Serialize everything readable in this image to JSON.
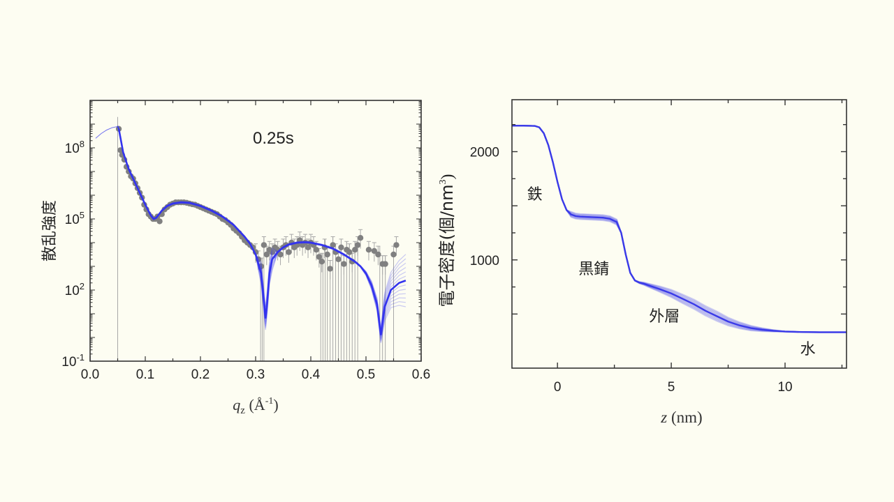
{
  "chart_data": [
    {
      "type": "scatter",
      "title": "",
      "annotation": "0.25s",
      "xlabel_main": "q",
      "xlabel_sub": "z",
      "xlabel_unit": " (Å",
      "xlabel_unit_sup": "-1",
      "xlabel_unit_close": ")",
      "ylabel": "散乱強度",
      "xlim": [
        0.0,
        0.6
      ],
      "ylim_log10": [
        -1,
        10
      ],
      "yscale": "log",
      "x_ticks": [
        "0.0",
        "0.1",
        "0.2",
        "0.3",
        "0.4",
        "0.5",
        "0.6"
      ],
      "x_tick_values": [
        0.0,
        0.1,
        0.2,
        0.3,
        0.4,
        0.5,
        0.6
      ],
      "y_ticks": [
        {
          "base": "10",
          "exp": "8",
          "log10": 8
        },
        {
          "base": "10",
          "exp": "5",
          "log10": 5
        },
        {
          "base": "10",
          "exp": "2",
          "log10": 2
        },
        {
          "base": "10",
          "exp": "-1",
          "log10": -1
        }
      ],
      "colors": {
        "data": "#808080",
        "fit": "#3333ee",
        "errorbar": "#a8a8a8"
      },
      "series": [
        {
          "name": "measured",
          "points_log10": [
            [
              0.052,
              8.8
            ],
            [
              0.055,
              7.9
            ],
            [
              0.058,
              7.7
            ],
            [
              0.062,
              7.5
            ],
            [
              0.066,
              7.2
            ],
            [
              0.07,
              7.0
            ],
            [
              0.074,
              6.8
            ],
            [
              0.078,
              6.7
            ],
            [
              0.082,
              6.5
            ],
            [
              0.086,
              6.3
            ],
            [
              0.09,
              6.1
            ],
            [
              0.094,
              5.9
            ],
            [
              0.098,
              5.6
            ],
            [
              0.102,
              5.4
            ],
            [
              0.106,
              5.2
            ],
            [
              0.11,
              5.1
            ],
            [
              0.114,
              5.0
            ],
            [
              0.118,
              5.0
            ],
            [
              0.122,
              5.1
            ],
            [
              0.126,
              4.9
            ],
            [
              0.13,
              5.2
            ],
            [
              0.135,
              5.4
            ],
            [
              0.14,
              5.5
            ],
            [
              0.145,
              5.6
            ],
            [
              0.15,
              5.65
            ],
            [
              0.155,
              5.7
            ],
            [
              0.16,
              5.7
            ],
            [
              0.165,
              5.7
            ],
            [
              0.17,
              5.7
            ],
            [
              0.175,
              5.68
            ],
            [
              0.18,
              5.65
            ],
            [
              0.185,
              5.62
            ],
            [
              0.19,
              5.6
            ],
            [
              0.195,
              5.55
            ],
            [
              0.2,
              5.5
            ],
            [
              0.205,
              5.45
            ],
            [
              0.21,
              5.4
            ],
            [
              0.215,
              5.35
            ],
            [
              0.22,
              5.3
            ],
            [
              0.225,
              5.25
            ],
            [
              0.23,
              5.2
            ],
            [
              0.235,
              5.1
            ],
            [
              0.24,
              5.0
            ],
            [
              0.245,
              4.95
            ],
            [
              0.25,
              4.85
            ],
            [
              0.255,
              4.75
            ],
            [
              0.26,
              4.6
            ],
            [
              0.265,
              4.5
            ],
            [
              0.27,
              4.4
            ],
            [
              0.275,
              4.25
            ],
            [
              0.28,
              4.1
            ],
            [
              0.285,
              4.0
            ],
            [
              0.29,
              3.9
            ],
            [
              0.295,
              3.8
            ],
            [
              0.3,
              3.6
            ],
            [
              0.305,
              3.3
            ],
            [
              0.31,
              3.0
            ],
            [
              0.315,
              3.9
            ],
            [
              0.32,
              3.5
            ],
            [
              0.325,
              3.7
            ],
            [
              0.33,
              3.6
            ],
            [
              0.335,
              3.8
            ],
            [
              0.34,
              3.7
            ],
            [
              0.345,
              3.5
            ],
            [
              0.35,
              3.8
            ],
            [
              0.355,
              3.9
            ],
            [
              0.36,
              3.6
            ],
            [
              0.365,
              4.0
            ],
            [
              0.37,
              3.8
            ],
            [
              0.375,
              3.9
            ],
            [
              0.38,
              4.1
            ],
            [
              0.385,
              3.9
            ],
            [
              0.39,
              4.0
            ],
            [
              0.395,
              3.8
            ],
            [
              0.4,
              4.0
            ],
            [
              0.405,
              3.9
            ],
            [
              0.41,
              3.7
            ],
            [
              0.415,
              3.4
            ],
            [
              0.42,
              3.2
            ],
            [
              0.425,
              3.8
            ],
            [
              0.43,
              3.5
            ],
            [
              0.435,
              2.9
            ],
            [
              0.44,
              3.9
            ],
            [
              0.445,
              3.6
            ],
            [
              0.45,
              3.3
            ],
            [
              0.455,
              3.8
            ],
            [
              0.46,
              3.1
            ],
            [
              0.465,
              3.7
            ],
            [
              0.47,
              3.6
            ],
            [
              0.475,
              3.2
            ],
            [
              0.48,
              3.7
            ],
            [
              0.485,
              3.9
            ],
            [
              0.49,
              4.2
            ],
            [
              0.505,
              3.7
            ],
            [
              0.515,
              3.65
            ],
            [
              0.522,
              3.5
            ],
            [
              0.53,
              3.1
            ],
            [
              0.535,
              3.1
            ],
            [
              0.55,
              3.5
            ],
            [
              0.555,
              3.9
            ]
          ]
        },
        {
          "name": "fit",
          "points_log10": [
            [
              0.01,
              8.4
            ],
            [
              0.02,
              8.6
            ],
            [
              0.03,
              8.75
            ],
            [
              0.04,
              8.85
            ],
            [
              0.05,
              8.9
            ],
            [
              0.052,
              8.8
            ],
            [
              0.06,
              7.8
            ],
            [
              0.07,
              7.1
            ],
            [
              0.08,
              6.6
            ],
            [
              0.09,
              6.1
            ],
            [
              0.1,
              5.6
            ],
            [
              0.11,
              5.15
            ],
            [
              0.115,
              5.0
            ],
            [
              0.12,
              5.05
            ],
            [
              0.13,
              5.35
            ],
            [
              0.14,
              5.55
            ],
            [
              0.15,
              5.65
            ],
            [
              0.165,
              5.7
            ],
            [
              0.18,
              5.68
            ],
            [
              0.2,
              5.55
            ],
            [
              0.22,
              5.35
            ],
            [
              0.24,
              5.1
            ],
            [
              0.26,
              4.75
            ],
            [
              0.28,
              4.25
            ],
            [
              0.29,
              3.95
            ],
            [
              0.3,
              3.5
            ],
            [
              0.31,
              2.7
            ],
            [
              0.315,
              1.5
            ],
            [
              0.318,
              0.8
            ],
            [
              0.321,
              1.5
            ],
            [
              0.325,
              2.7
            ],
            [
              0.33,
              3.3
            ],
            [
              0.34,
              3.6
            ],
            [
              0.35,
              3.8
            ],
            [
              0.36,
              3.92
            ],
            [
              0.375,
              4.0
            ],
            [
              0.39,
              4.02
            ],
            [
              0.4,
              4.0
            ],
            [
              0.42,
              3.9
            ],
            [
              0.44,
              3.75
            ],
            [
              0.46,
              3.5
            ],
            [
              0.48,
              3.2
            ],
            [
              0.49,
              3.0
            ],
            [
              0.5,
              2.7
            ],
            [
              0.51,
              2.2
            ],
            [
              0.52,
              1.4
            ],
            [
              0.527,
              0.1
            ],
            [
              0.534,
              1.3
            ],
            [
              0.545,
              2.0
            ],
            [
              0.56,
              2.3
            ],
            [
              0.572,
              2.4
            ]
          ]
        }
      ]
    },
    {
      "type": "line",
      "title": "",
      "xlabel_main": "z",
      "xlabel_unit": " (nm)",
      "ylabel": "電子密度(個/nm",
      "ylabel_sup": "3",
      "ylabel_close": ")",
      "xlim": [
        -2.0,
        12.7
      ],
      "ylim": [
        0,
        2480
      ],
      "x_ticks": [
        "0",
        "5",
        "10"
      ],
      "x_tick_values": [
        0,
        5,
        10
      ],
      "y_ticks": [
        "2000",
        "1000"
      ],
      "y_tick_values": [
        2000,
        1000
      ],
      "colors": {
        "line": "#3a3ae8"
      },
      "annotations": [
        {
          "text": "鉄",
          "x": -1.0,
          "y": 1560
        },
        {
          "text": "黒錆",
          "x": 1.6,
          "y": 870
        },
        {
          "text": "外層",
          "x": 4.7,
          "y": 430
        },
        {
          "text": "水",
          "x": 11.0,
          "y": 130
        }
      ],
      "series": [
        {
          "name": "electron-density",
          "x": [
            -2.0,
            -1.5,
            -1.0,
            -0.8,
            -0.6,
            -0.4,
            -0.2,
            0.0,
            0.2,
            0.4,
            0.6,
            0.8,
            1.0,
            1.5,
            2.0,
            2.3,
            2.6,
            2.8,
            3.0,
            3.2,
            3.4,
            3.6,
            3.8,
            4.0,
            4.5,
            5.0,
            5.5,
            6.0,
            6.5,
            7.0,
            7.5,
            8.0,
            8.5,
            9.0,
            9.5,
            10.0,
            10.5,
            11.0,
            11.5,
            12.0,
            12.7
          ],
          "y": [
            2240,
            2240,
            2238,
            2225,
            2170,
            2060,
            1900,
            1720,
            1560,
            1460,
            1420,
            1405,
            1400,
            1395,
            1390,
            1380,
            1350,
            1250,
            1050,
            880,
            810,
            790,
            780,
            765,
            730,
            690,
            640,
            590,
            530,
            480,
            430,
            395,
            370,
            355,
            345,
            338,
            335,
            333,
            332,
            332,
            332
          ]
        }
      ]
    }
  ]
}
